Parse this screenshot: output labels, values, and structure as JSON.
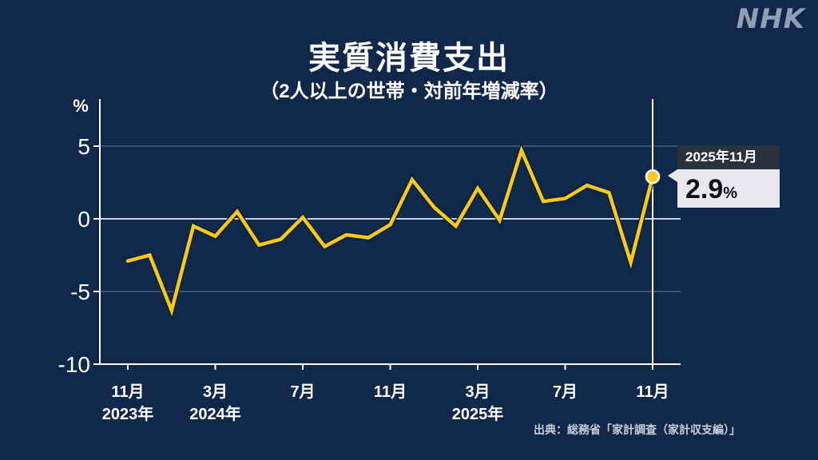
{
  "brand": {
    "logo": "NHK"
  },
  "header": {
    "title": "実質消費支出",
    "subtitle": "（2人以上の世帯・対前年増減率）"
  },
  "source": "出典：総務省「家計調査（家計収支編）」",
  "tooltip": {
    "period": "2025年11月",
    "value": "2.9",
    "unit": "%"
  },
  "colors": {
    "background": "#10284a",
    "line": "#f7c91a",
    "axis": "#ffffff",
    "grid": "#4a6080",
    "zero_line": "#c8d0dc"
  },
  "chart_data": {
    "type": "line",
    "title": "実質消費支出",
    "subtitle": "（2人以上の世帯・対前年増減率）",
    "xlabel": "",
    "ylabel": "%",
    "ylim": [
      -10,
      7
    ],
    "yticks": [
      5,
      0,
      -5,
      -10
    ],
    "grid": true,
    "x": [
      "2023-11",
      "2023-12",
      "2024-01",
      "2024-02",
      "2024-03",
      "2024-04",
      "2024-05",
      "2024-06",
      "2024-07",
      "2024-08",
      "2024-09",
      "2024-10",
      "2024-11",
      "2024-12",
      "2025-01",
      "2025-02",
      "2025-03",
      "2025-04",
      "2025-05",
      "2025-06",
      "2025-07",
      "2025-08",
      "2025-09",
      "2025-10",
      "2025-11"
    ],
    "xtick_labels": [
      {
        "month": "11月",
        "year": "2023年",
        "index": 0
      },
      {
        "month": "3月",
        "year": "2024年",
        "index": 4
      },
      {
        "month": "7月",
        "year": "",
        "index": 8
      },
      {
        "month": "11月",
        "year": "",
        "index": 12
      },
      {
        "month": "3月",
        "year": "2025年",
        "index": 16
      },
      {
        "month": "7月",
        "year": "",
        "index": 20
      },
      {
        "month": "11月",
        "year": "",
        "index": 24
      }
    ],
    "series": [
      {
        "name": "実質消費支出 対前年増減率",
        "values": [
          -2.9,
          -2.5,
          -6.3,
          -0.5,
          -1.2,
          0.5,
          -1.8,
          -1.4,
          0.1,
          -1.9,
          -1.1,
          -1.3,
          -0.4,
          2.7,
          0.8,
          -0.5,
          2.1,
          -0.1,
          4.7,
          1.2,
          1.4,
          2.3,
          1.8,
          -3.0,
          2.9
        ]
      }
    ],
    "annotations": [
      {
        "x": "2025-11",
        "label": "2025年11月",
        "value": "2.9%"
      }
    ]
  }
}
